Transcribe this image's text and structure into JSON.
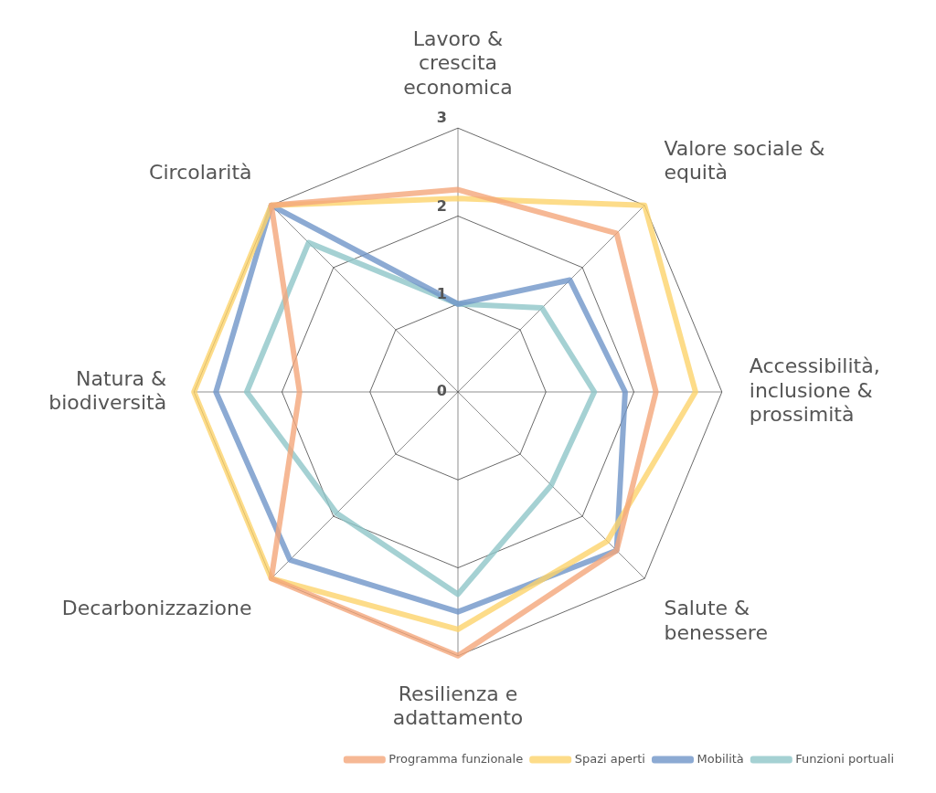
{
  "chart_data": {
    "type": "radar",
    "categories": [
      "Lavoro & crescita economica",
      "Valore sociale & equità",
      "Accessibilità, inclusione & prossimità",
      "Salute & benessere",
      "Resilienza e adattamento",
      "Decarbonizzazione",
      "Natura & biodiversità",
      "Circolarità"
    ],
    "series": [
      {
        "name": "Programma funzionale",
        "color": "#f4a67a",
        "values": [
          2.3,
          2.55,
          2.25,
          2.55,
          3.0,
          3.0,
          1.8,
          3.0
        ]
      },
      {
        "name": "Spazi aperti",
        "color": "#fdd36b",
        "values": [
          2.2,
          3.0,
          2.7,
          2.4,
          2.7,
          3.0,
          3.0,
          3.0
        ]
      },
      {
        "name": "Mobilità",
        "color": "#6f95c8",
        "values": [
          1.0,
          1.8,
          1.9,
          2.55,
          2.5,
          2.7,
          2.75,
          3.0
        ]
      },
      {
        "name": "Funzioni portuali",
        "color": "#8fc6c8",
        "values": [
          1.0,
          1.35,
          1.55,
          1.5,
          2.3,
          1.95,
          2.4,
          2.4
        ]
      }
    ],
    "ylim": [
      0,
      3
    ],
    "yticks": [
      0,
      1,
      2,
      3
    ],
    "grid": true,
    "legend": "bottom right",
    "marker": "none",
    "line_style": "solid"
  }
}
